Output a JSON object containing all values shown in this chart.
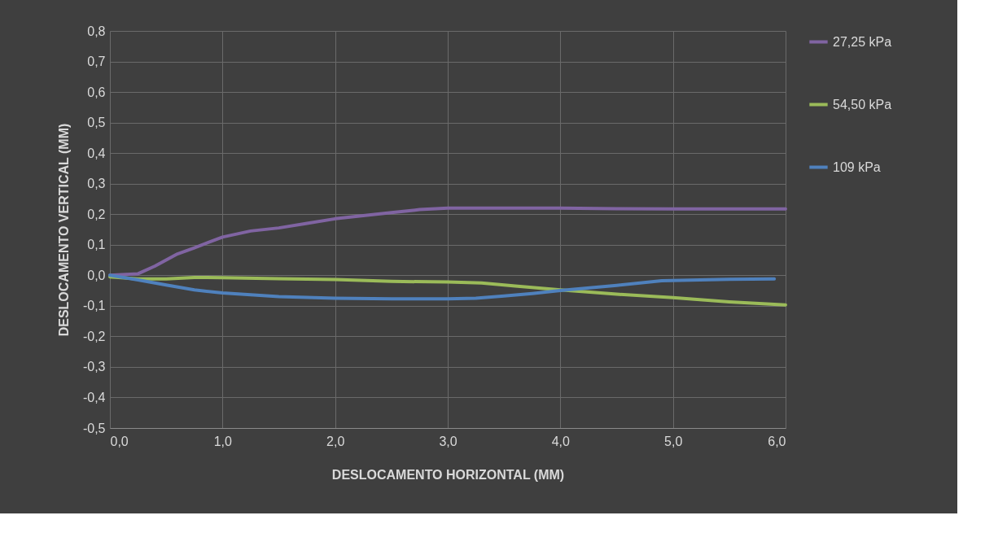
{
  "chart_data": {
    "type": "line",
    "xlabel": "DESLOCAMENTO HORIZONTAL (MM)",
    "ylabel": "DESLOCAMENTO VERTICAL (MM)",
    "xlim": [
      0,
      6
    ],
    "ylim": [
      -0.5,
      0.8
    ],
    "xticks": [
      {
        "value": 0,
        "label": "0,0"
      },
      {
        "value": 1,
        "label": "1,0"
      },
      {
        "value": 2,
        "label": "2,0"
      },
      {
        "value": 3,
        "label": "3,0"
      },
      {
        "value": 4,
        "label": "4,0"
      },
      {
        "value": 5,
        "label": "5,0"
      },
      {
        "value": 6,
        "label": "6,0"
      }
    ],
    "yticks": [
      {
        "value": -0.5,
        "label": "-0,5"
      },
      {
        "value": -0.4,
        "label": "-0,4"
      },
      {
        "value": -0.3,
        "label": "-0,3"
      },
      {
        "value": -0.2,
        "label": "-0,2"
      },
      {
        "value": -0.1,
        "label": "-0,1"
      },
      {
        "value": 0,
        "label": "0,0"
      },
      {
        "value": 0.1,
        "label": "0,1"
      },
      {
        "value": 0.2,
        "label": "0,2"
      },
      {
        "value": 0.3,
        "label": "0,3"
      },
      {
        "value": 0.4,
        "label": "0,4"
      },
      {
        "value": 0.5,
        "label": "0,5"
      },
      {
        "value": 0.6,
        "label": "0,6"
      },
      {
        "value": 0.7,
        "label": "0,7"
      },
      {
        "value": 0.8,
        "label": "0,8"
      }
    ],
    "grid": true,
    "legend": "right",
    "line_style": "solid",
    "marker": "none",
    "series": [
      {
        "name": "27,25 kPa",
        "color": "#8064a2",
        "x": [
          0,
          0.25,
          0.4,
          0.6,
          0.75,
          1.0,
          1.25,
          1.5,
          1.75,
          2.0,
          2.25,
          2.5,
          2.75,
          3.0,
          3.5,
          4.0,
          4.5,
          5.0,
          5.5,
          6.0
        ],
        "values": [
          0,
          0.005,
          0.03,
          0.07,
          0.09,
          0.125,
          0.145,
          0.155,
          0.17,
          0.185,
          0.195,
          0.205,
          0.215,
          0.22,
          0.22,
          0.22,
          0.218,
          0.217,
          0.217,
          0.217
        ]
      },
      {
        "name": "54,50 kPa",
        "color": "#9bbb59",
        "x": [
          0,
          0.25,
          0.5,
          0.75,
          1.0,
          1.5,
          2.0,
          2.5,
          3.0,
          3.3,
          3.6,
          4.0,
          4.5,
          5.0,
          5.5,
          6.0
        ],
        "values": [
          -0.005,
          -0.012,
          -0.012,
          -0.007,
          -0.008,
          -0.011,
          -0.014,
          -0.02,
          -0.022,
          -0.025,
          -0.035,
          -0.048,
          -0.062,
          -0.073,
          -0.087,
          -0.097
        ]
      },
      {
        "name": "109 kPa",
        "color": "#4f81bd",
        "x": [
          0,
          0.25,
          0.5,
          0.75,
          1.0,
          1.5,
          2.0,
          2.5,
          3.0,
          3.25,
          3.5,
          3.75,
          4.0,
          4.5,
          4.9,
          5.5,
          5.9
        ],
        "values": [
          0,
          -0.015,
          -0.032,
          -0.048,
          -0.058,
          -0.07,
          -0.075,
          -0.077,
          -0.077,
          -0.075,
          -0.068,
          -0.06,
          -0.05,
          -0.033,
          -0.018,
          -0.013,
          -0.012
        ]
      }
    ]
  }
}
